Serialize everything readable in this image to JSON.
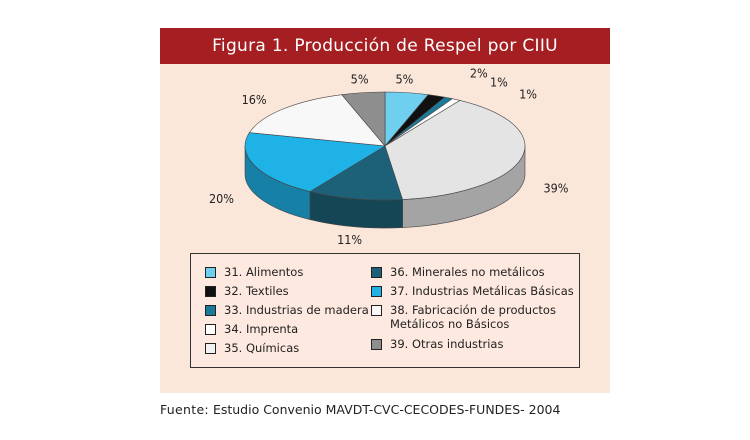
{
  "figure_title": "Figura 1. Producción de Respel por CIIU",
  "chart_data": {
    "type": "pie",
    "title": "Figura 1. Producción de Respel por CIIU",
    "slices": [
      {
        "label": "31. Alimentos",
        "value": 5,
        "pct_label": "5%",
        "color": "#6fcfee"
      },
      {
        "label": "32. Textiles",
        "value": 2,
        "pct_label": "2%",
        "color": "#111111"
      },
      {
        "label": "33. Industrias de madera",
        "value": 1,
        "pct_label": "1%",
        "color": "#1b7a98"
      },
      {
        "label": "34. Imprenta",
        "value": 1,
        "pct_label": "1%",
        "color": "#ffffff"
      },
      {
        "label": "35. Químicas",
        "value": 39,
        "pct_label": "39%",
        "color": "#e4e4e4"
      },
      {
        "label": "36. Minerales no metálicos",
        "value": 11,
        "pct_label": "11%",
        "color": "#1d6178"
      },
      {
        "label": "37. Industrias Metálicas Básicas",
        "value": 20,
        "pct_label": "20%",
        "color": "#1fb2e6"
      },
      {
        "label": "38. Fabricación de productos Metálicos no Básicos",
        "value": 16,
        "pct_label": "16%",
        "color": "#f8f8f8"
      },
      {
        "label": "39. Otras industrias",
        "value": 5,
        "pct_label": "5%",
        "color": "#8e8e8e"
      }
    ],
    "legend_placement": "bottom"
  },
  "legend": {
    "left": [
      {
        "label": "31. Alimentos",
        "color": "#6fcfee"
      },
      {
        "label": "32. Textiles",
        "color": "#111111"
      },
      {
        "label": "33. Industrias de madera",
        "color": "#1b7a98"
      },
      {
        "label": "34. Imprenta",
        "color": "#ffffff"
      },
      {
        "label": "35. Químicas",
        "color": "#f2f2f2"
      }
    ],
    "right": [
      {
        "label": "36. Minerales no metálicos",
        "color": "#1d6178"
      },
      {
        "label": "37. Industrias Metálicas Básicas",
        "color": "#1fb2e6"
      },
      {
        "label": "38. Fabricación de productos Metálicos no Básicos",
        "color": "#f8f8f8"
      },
      {
        "label": "39. Otras industrias",
        "color": "#8e8e8e"
      }
    ]
  },
  "source": {
    "key": "Fuente:",
    "text": "Estudio Convenio MAVDT-CVC-CECODES-FUNDES- 2004"
  }
}
